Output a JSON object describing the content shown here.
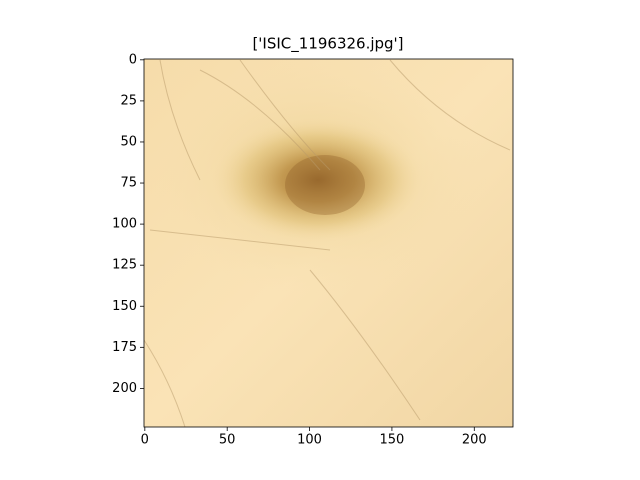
{
  "chart_data": {
    "type": "image",
    "title": "['ISIC_1196326.jpg']",
    "xlim": [
      -0.5,
      223.5
    ],
    "ylim": [
      223.5,
      -0.5
    ],
    "xticks": [
      0,
      50,
      100,
      150,
      200
    ],
    "yticks": [
      0,
      25,
      50,
      75,
      100,
      125,
      150,
      175,
      200
    ]
  }
}
